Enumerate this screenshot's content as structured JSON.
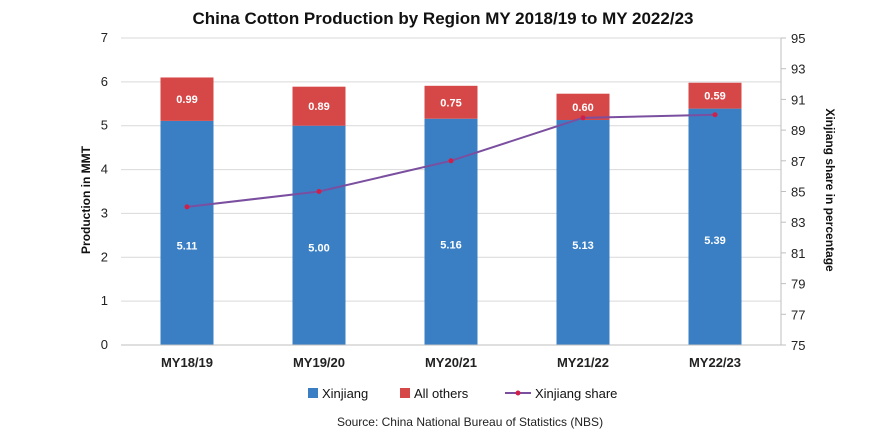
{
  "chart_data": {
    "type": "bar",
    "stacked": true,
    "title": "China Cotton Production by Region MY 2018/19 to MY 2022/23",
    "categories": [
      "MY18/19",
      "MY19/20",
      "MY20/21",
      "MY21/22",
      "MY22/23"
    ],
    "series": [
      {
        "name": "Xinjiang",
        "values": [
          5.11,
          5.0,
          5.16,
          5.13,
          5.39
        ],
        "color": "#3a7fc4",
        "axis": "left",
        "kind": "bar"
      },
      {
        "name": "All others",
        "values": [
          0.99,
          0.89,
          0.75,
          0.6,
          0.59
        ],
        "color": "#d64848",
        "axis": "left",
        "kind": "bar"
      },
      {
        "name": "Xinjiang share",
        "values": [
          84,
          85,
          87,
          89.8,
          90
        ],
        "color": "#7b4fa0",
        "marker_color": "#d0204a",
        "axis": "right",
        "kind": "line"
      }
    ],
    "data_labels": {
      "Xinjiang": [
        "5.11",
        "5.00",
        "5.16",
        "5.13",
        "5.39"
      ],
      "All others": [
        "0.99",
        "0.89",
        "0.75",
        "0.60",
        "0.59"
      ]
    },
    "ylabel": "Production in MMT",
    "ylim": [
      0,
      7
    ],
    "yticks": [
      "0",
      "1",
      "2",
      "3",
      "4",
      "5",
      "6",
      "7"
    ],
    "y2label": "Xinjiang share in percentage",
    "y2lim": [
      75,
      95
    ],
    "y2ticks": [
      "75",
      "77",
      "79",
      "81",
      "83",
      "85",
      "87",
      "89",
      "91",
      "93",
      "95"
    ],
    "grid": true,
    "legend_position": "bottom",
    "source": "Source: China National Bureau of Statistics (NBS)"
  }
}
